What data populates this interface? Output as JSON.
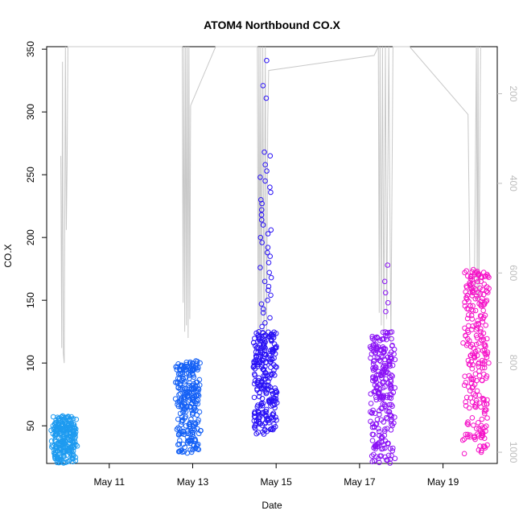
{
  "chart_data": {
    "type": "scatter",
    "title": "ATOM4 Northbound CO.X",
    "xlabel": "Date",
    "ylabel": "CO.X",
    "x_ticks": [
      "May 11",
      "May 13",
      "May 15",
      "May 17",
      "May 19"
    ],
    "x_tick_days": [
      11,
      13,
      15,
      17,
      19
    ],
    "xlim_days": [
      9.5,
      20.3
    ],
    "ylim": [
      20,
      352
    ],
    "y_ticks": [
      50,
      100,
      150,
      200,
      250,
      300,
      350
    ],
    "secondary_axis": {
      "label": "",
      "ticks": [
        200,
        400,
        600,
        800,
        1000
      ],
      "ylim_reversed": [
        95,
        1025
      ],
      "color": "#bdbdbd"
    },
    "grid": false,
    "series": [
      {
        "day": 9.92,
        "values": [
          {
            "lo": 20,
            "hi": 58
          }
        ],
        "outliers": [],
        "color": "#1e9bf0"
      },
      {
        "day": 12.9,
        "values": [
          {
            "lo": 28,
            "hi": 102
          }
        ],
        "outliers": [],
        "color": "#1460f5"
      },
      {
        "day": 14.75,
        "values": [
          {
            "lo": 43,
            "hi": 125
          }
        ],
        "outliers": [
          341,
          321,
          311,
          268,
          265,
          258,
          253,
          248,
          245,
          240,
          236,
          230,
          227,
          222,
          218,
          214,
          210,
          206,
          203,
          200,
          196,
          192,
          188,
          185,
          180,
          176,
          172,
          168,
          165,
          161,
          158,
          154,
          150,
          147,
          143,
          140,
          136,
          132,
          129
        ],
        "color": "#2a12f5"
      },
      {
        "day": 17.55,
        "values": [
          {
            "lo": 20,
            "hi": 125
          }
        ],
        "outliers": [
          178,
          165,
          156,
          148,
          141
        ],
        "color": "#8a12f5"
      },
      {
        "day": 19.8,
        "values": [
          {
            "lo": 27,
            "hi": 175
          }
        ],
        "outliers": [],
        "color": "#f512c8"
      }
    ],
    "line_series": {
      "color": "#c8c8c8",
      "points": [
        [
          9.84,
          265
        ],
        [
          9.86,
          112
        ],
        [
          9.88,
          340
        ],
        [
          9.9,
          108
        ],
        [
          9.92,
          100
        ],
        [
          9.95,
          360
        ],
        [
          9.97,
          206
        ],
        [
          9.99,
          258
        ],
        [
          10.01,
          360
        ],
        [
          12.75,
          360
        ],
        [
          12.77,
          148
        ],
        [
          12.79,
          360
        ],
        [
          12.81,
          125
        ],
        [
          12.83,
          360
        ],
        [
          12.85,
          130
        ],
        [
          12.87,
          360
        ],
        [
          12.89,
          120
        ],
        [
          12.91,
          360
        ],
        [
          12.93,
          135
        ],
        [
          12.95,
          305
        ],
        [
          13.55,
          360
        ],
        [
          14.55,
          360
        ],
        [
          14.57,
          95
        ],
        [
          14.59,
          360
        ],
        [
          14.61,
          120
        ],
        [
          14.63,
          360
        ],
        [
          14.65,
          130
        ],
        [
          14.68,
          360
        ],
        [
          14.71,
          110
        ],
        [
          14.74,
          360
        ],
        [
          14.77,
          115
        ],
        [
          14.8,
          295
        ],
        [
          14.82,
          333
        ],
        [
          17.35,
          345
        ],
        [
          17.45,
          360
        ],
        [
          17.47,
          140
        ],
        [
          17.49,
          360
        ],
        [
          17.52,
          130
        ],
        [
          17.55,
          360
        ],
        [
          17.58,
          125
        ],
        [
          17.62,
          360
        ],
        [
          17.65,
          135
        ],
        [
          17.7,
          360
        ],
        [
          17.75,
          115
        ],
        [
          17.8,
          360
        ],
        [
          18.2,
          360
        ],
        [
          19.6,
          298
        ],
        [
          19.65,
          155
        ],
        [
          19.75,
          155
        ],
        [
          19.8,
          360
        ],
        [
          19.82,
          150
        ],
        [
          19.84,
          360
        ],
        [
          19.86,
          145
        ],
        [
          19.9,
          360
        ]
      ]
    }
  }
}
